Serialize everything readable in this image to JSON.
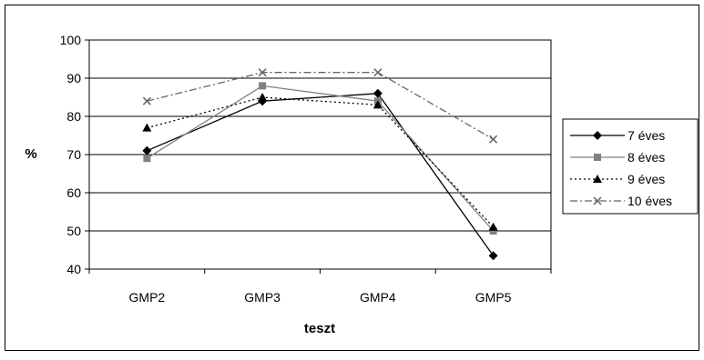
{
  "chart_data": {
    "type": "line",
    "xlabel": "teszt",
    "ylabel": "%",
    "categories": [
      "GMP2",
      "GMP3",
      "GMP4",
      "GMP5"
    ],
    "ylim": [
      40,
      100
    ],
    "yticks": [
      40,
      50,
      60,
      70,
      80,
      90,
      100
    ],
    "grid": "horizontal",
    "legend_position": "right",
    "series": [
      {
        "name": "7 éves",
        "values": [
          71,
          84,
          86,
          43.5
        ],
        "color": "#000000",
        "dash": "solid",
        "marker": "diamond"
      },
      {
        "name": "8 éves",
        "values": [
          69,
          88,
          84,
          50
        ],
        "color": "#808080",
        "dash": "solid",
        "marker": "square"
      },
      {
        "name": "9 éves",
        "values": [
          77,
          85,
          83,
          51
        ],
        "color": "#000000",
        "dash": "dotted",
        "marker": "triangle"
      },
      {
        "name": "10 éves",
        "values": [
          84,
          91.5,
          91.5,
          74
        ],
        "color": "#666666",
        "dash": "dashdot",
        "marker": "x"
      }
    ]
  }
}
